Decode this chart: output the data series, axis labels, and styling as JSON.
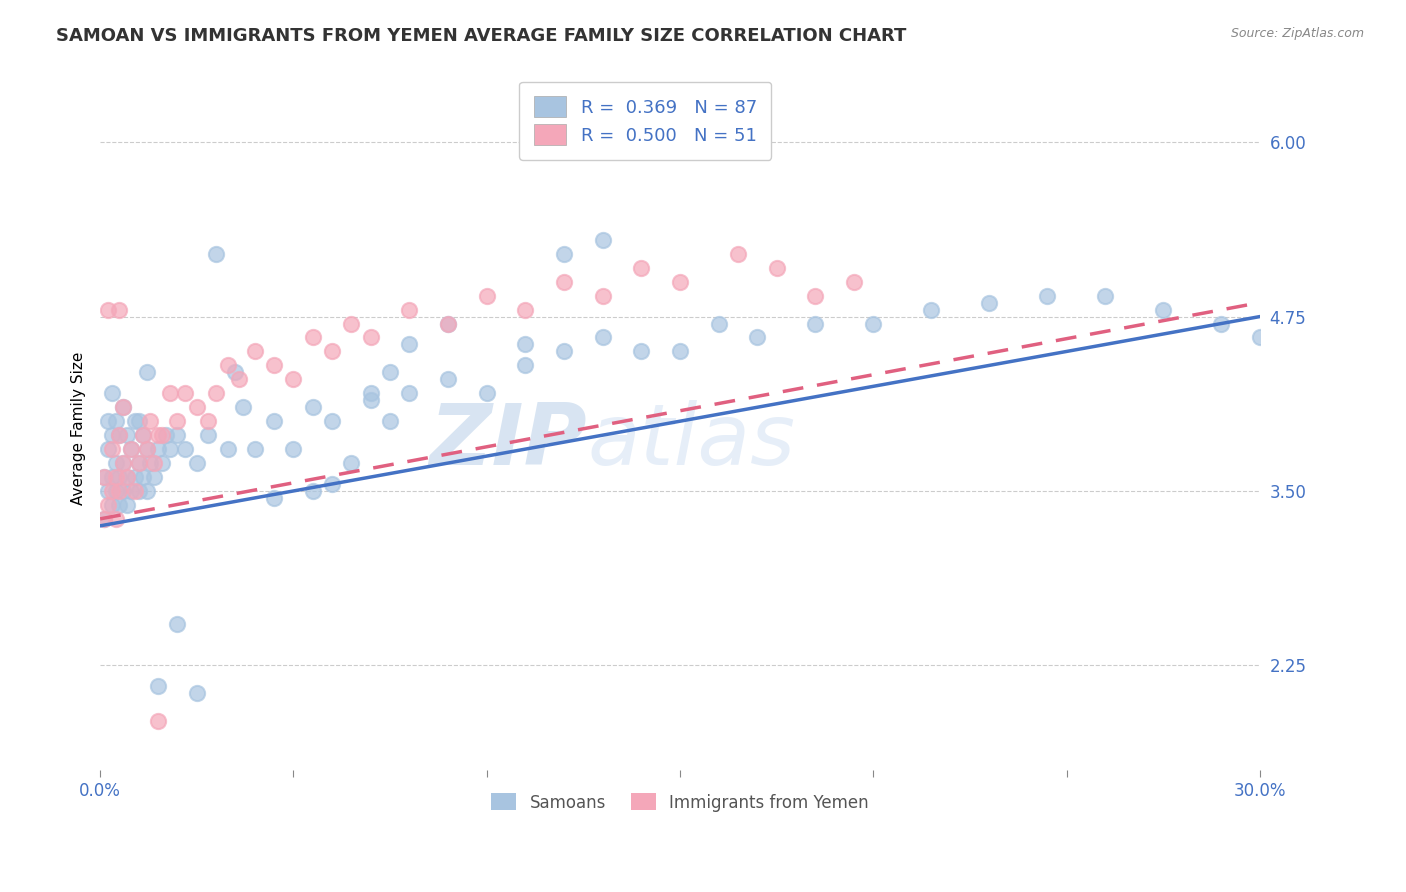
{
  "title": "SAMOAN VS IMMIGRANTS FROM YEMEN AVERAGE FAMILY SIZE CORRELATION CHART",
  "source": "Source: ZipAtlas.com",
  "xlabel": "",
  "ylabel": "Average Family Size",
  "xmin": 0.0,
  "xmax": 0.3,
  "ymin": 1.5,
  "ymax": 6.4,
  "yticks": [
    2.25,
    3.5,
    4.75,
    6.0
  ],
  "xticks": [
    0.0,
    0.05,
    0.1,
    0.15,
    0.2,
    0.25,
    0.3
  ],
  "xticklabels": [
    "0.0%",
    "",
    "",
    "",
    "",
    "",
    "30.0%"
  ],
  "samoan_color": "#a8c4e0",
  "yemen_color": "#f4a7b9",
  "line_blue": "#4472c4",
  "line_pink": "#e06080",
  "watermark_zip": "ZIP",
  "watermark_atlas": "atlas",
  "title_fontsize": 13,
  "axis_label_fontsize": 11,
  "tick_fontsize": 12,
  "blue_line_x0": 0.0,
  "blue_line_y0": 3.25,
  "blue_line_x1": 0.3,
  "blue_line_y1": 4.75,
  "pink_line_x0": 0.0,
  "pink_line_y0": 3.3,
  "pink_line_x1": 0.3,
  "pink_line_y1": 4.85,
  "samoans_x": [
    0.001,
    0.001,
    0.002,
    0.002,
    0.002,
    0.003,
    0.003,
    0.003,
    0.003,
    0.004,
    0.004,
    0.004,
    0.005,
    0.005,
    0.005,
    0.006,
    0.006,
    0.006,
    0.007,
    0.007,
    0.007,
    0.008,
    0.008,
    0.009,
    0.009,
    0.01,
    0.01,
    0.01,
    0.011,
    0.011,
    0.012,
    0.012,
    0.013,
    0.014,
    0.015,
    0.016,
    0.017,
    0.018,
    0.02,
    0.022,
    0.025,
    0.028,
    0.03,
    0.033,
    0.037,
    0.04,
    0.045,
    0.05,
    0.055,
    0.06,
    0.065,
    0.07,
    0.075,
    0.08,
    0.09,
    0.1,
    0.11,
    0.12,
    0.13,
    0.14,
    0.15,
    0.16,
    0.17,
    0.185,
    0.2,
    0.215,
    0.23,
    0.245,
    0.26,
    0.275,
    0.29,
    0.3,
    0.13,
    0.12,
    0.11,
    0.09,
    0.08,
    0.035,
    0.045,
    0.055,
    0.06,
    0.07,
    0.075,
    0.025,
    0.015,
    0.02,
    0.012
  ],
  "samoans_y": [
    3.3,
    3.6,
    3.5,
    3.8,
    4.0,
    3.4,
    3.6,
    3.9,
    4.2,
    3.5,
    3.7,
    4.0,
    3.4,
    3.6,
    3.9,
    3.5,
    3.7,
    4.1,
    3.4,
    3.6,
    3.9,
    3.5,
    3.8,
    3.6,
    4.0,
    3.5,
    3.7,
    4.0,
    3.6,
    3.9,
    3.5,
    3.8,
    3.7,
    3.6,
    3.8,
    3.7,
    3.9,
    3.8,
    3.9,
    3.8,
    3.7,
    3.9,
    5.2,
    3.8,
    4.1,
    3.8,
    4.0,
    3.8,
    4.1,
    4.0,
    3.7,
    4.2,
    4.0,
    4.2,
    4.3,
    4.2,
    4.4,
    4.5,
    4.6,
    4.5,
    4.5,
    4.7,
    4.6,
    4.7,
    4.7,
    4.8,
    4.85,
    4.9,
    4.9,
    4.8,
    4.7,
    4.6,
    5.3,
    5.2,
    4.55,
    4.7,
    4.55,
    4.35,
    3.45,
    3.5,
    3.55,
    4.15,
    4.35,
    2.05,
    2.1,
    2.55,
    4.35
  ],
  "yemen_x": [
    0.001,
    0.001,
    0.002,
    0.002,
    0.003,
    0.003,
    0.004,
    0.004,
    0.005,
    0.005,
    0.006,
    0.006,
    0.007,
    0.008,
    0.009,
    0.01,
    0.011,
    0.012,
    0.013,
    0.014,
    0.015,
    0.016,
    0.018,
    0.02,
    0.022,
    0.025,
    0.028,
    0.03,
    0.033,
    0.036,
    0.04,
    0.045,
    0.05,
    0.055,
    0.06,
    0.065,
    0.07,
    0.08,
    0.09,
    0.1,
    0.11,
    0.12,
    0.13,
    0.14,
    0.15,
    0.165,
    0.175,
    0.185,
    0.195,
    0.015,
    0.005
  ],
  "yemen_y": [
    3.3,
    3.6,
    3.4,
    4.8,
    3.5,
    3.8,
    3.3,
    3.6,
    3.5,
    3.9,
    3.7,
    4.1,
    3.6,
    3.8,
    3.5,
    3.7,
    3.9,
    3.8,
    4.0,
    3.7,
    1.85,
    3.9,
    4.2,
    4.0,
    4.2,
    4.1,
    4.0,
    4.2,
    4.4,
    4.3,
    4.5,
    4.4,
    4.3,
    4.6,
    4.5,
    4.7,
    4.6,
    4.8,
    4.7,
    4.9,
    4.8,
    5.0,
    4.9,
    5.1,
    5.0,
    5.2,
    5.1,
    4.9,
    5.0,
    3.9,
    4.8
  ]
}
